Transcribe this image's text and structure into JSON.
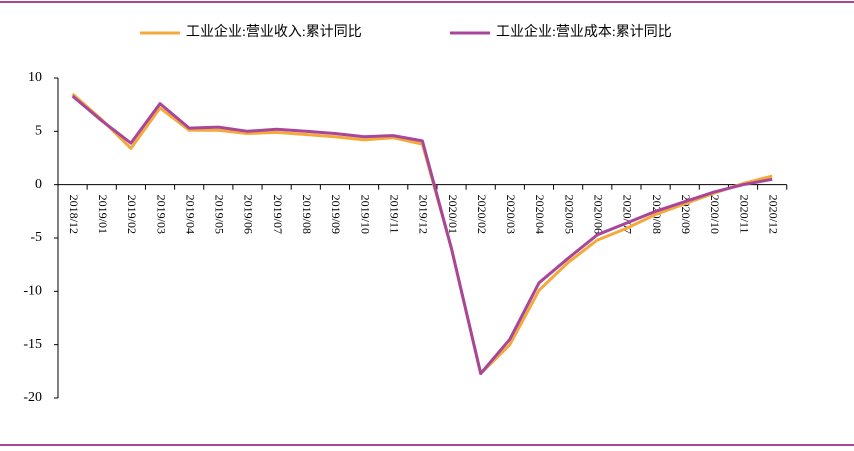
{
  "chart_data": {
    "type": "line",
    "categories": [
      "2018/12",
      "2019/01",
      "2019/02",
      "2019/03",
      "2019/04",
      "2019/05",
      "2019/06",
      "2019/07",
      "2019/08",
      "2019/09",
      "2019/10",
      "2019/11",
      "2019/12",
      "2020/01",
      "2020/02",
      "2020/03",
      "2020/04",
      "2020/05",
      "2020/06",
      "2020/07",
      "2020/08",
      "2020/09",
      "2020/10",
      "2020/11",
      "2020/12"
    ],
    "series": [
      {
        "name": "工业企业:营业收入:累计同比",
        "color": "#f5a93a",
        "values": [
          8.5,
          6.1,
          3.4,
          7.2,
          5.1,
          5.1,
          4.8,
          4.9,
          4.7,
          4.5,
          4.2,
          4.4,
          3.8,
          -6.0,
          -17.7,
          -15.0,
          -9.9,
          -7.3,
          -5.2,
          -4.1,
          -2.8,
          -1.8,
          -0.8,
          0.1,
          0.8
        ]
      },
      {
        "name": "工业企业:营业成本:累计同比",
        "color": "#a8469a",
        "values": [
          8.3,
          6.0,
          3.9,
          7.6,
          5.3,
          5.4,
          5.0,
          5.2,
          5.0,
          4.8,
          4.5,
          4.6,
          4.1,
          -6.0,
          -17.7,
          -14.5,
          -9.2,
          -6.9,
          -4.7,
          -3.6,
          -2.5,
          -1.6,
          -0.7,
          0.0,
          0.5
        ]
      }
    ],
    "ylim": [
      -20,
      10
    ],
    "yticks": [
      -20,
      -15,
      -10,
      -5,
      0,
      5,
      10
    ],
    "grid": false
  }
}
